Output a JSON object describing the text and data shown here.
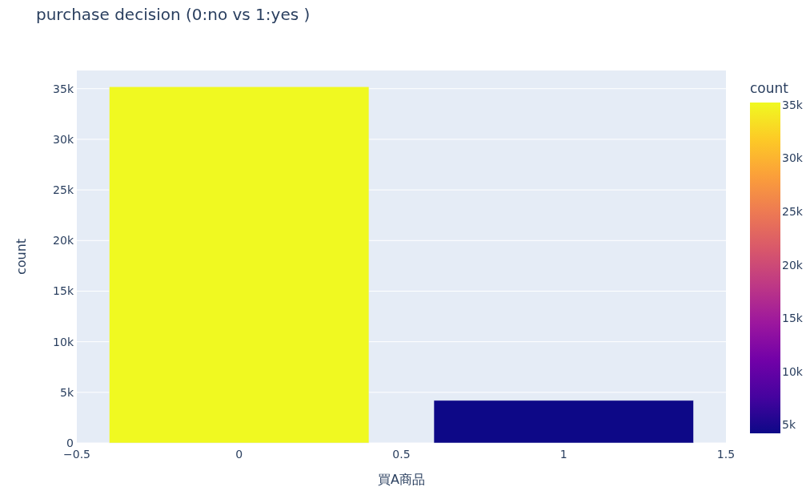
{
  "chart_data": {
    "type": "bar",
    "title": "purchase decision   (0:no vs 1:yes )",
    "xlabel": "買A商品",
    "ylabel": "count",
    "clabel": "count",
    "x": [
      0,
      1
    ],
    "values": [
      35200,
      4200
    ],
    "colors": [
      "#f0f921",
      "#0d0887"
    ],
    "xlim": [
      -0.5,
      1.5
    ],
    "xticks": [
      {
        "value": -0.5,
        "label": "−0.5"
      },
      0,
      0.5,
      1,
      1.5
    ],
    "ylim": [
      0,
      36800
    ],
    "yticks": [
      0,
      {
        "value": 5000,
        "label": "5k"
      },
      {
        "value": 10000,
        "label": "10k"
      },
      {
        "value": 15000,
        "label": "15k"
      },
      {
        "value": 20000,
        "label": "20k"
      },
      {
        "value": 25000,
        "label": "25k"
      },
      {
        "value": 30000,
        "label": "30k"
      },
      {
        "value": 35000,
        "label": "35k"
      }
    ],
    "clim": [
      4200,
      35200
    ],
    "cticks": [
      {
        "value": 5000,
        "label": "5k"
      },
      {
        "value": 10000,
        "label": "10k"
      },
      {
        "value": 15000,
        "label": "15k"
      },
      {
        "value": 20000,
        "label": "20k"
      },
      {
        "value": 25000,
        "label": "25k"
      },
      {
        "value": 30000,
        "label": "30k"
      },
      {
        "value": 35000,
        "label": "35k"
      }
    ],
    "grid": "y"
  }
}
